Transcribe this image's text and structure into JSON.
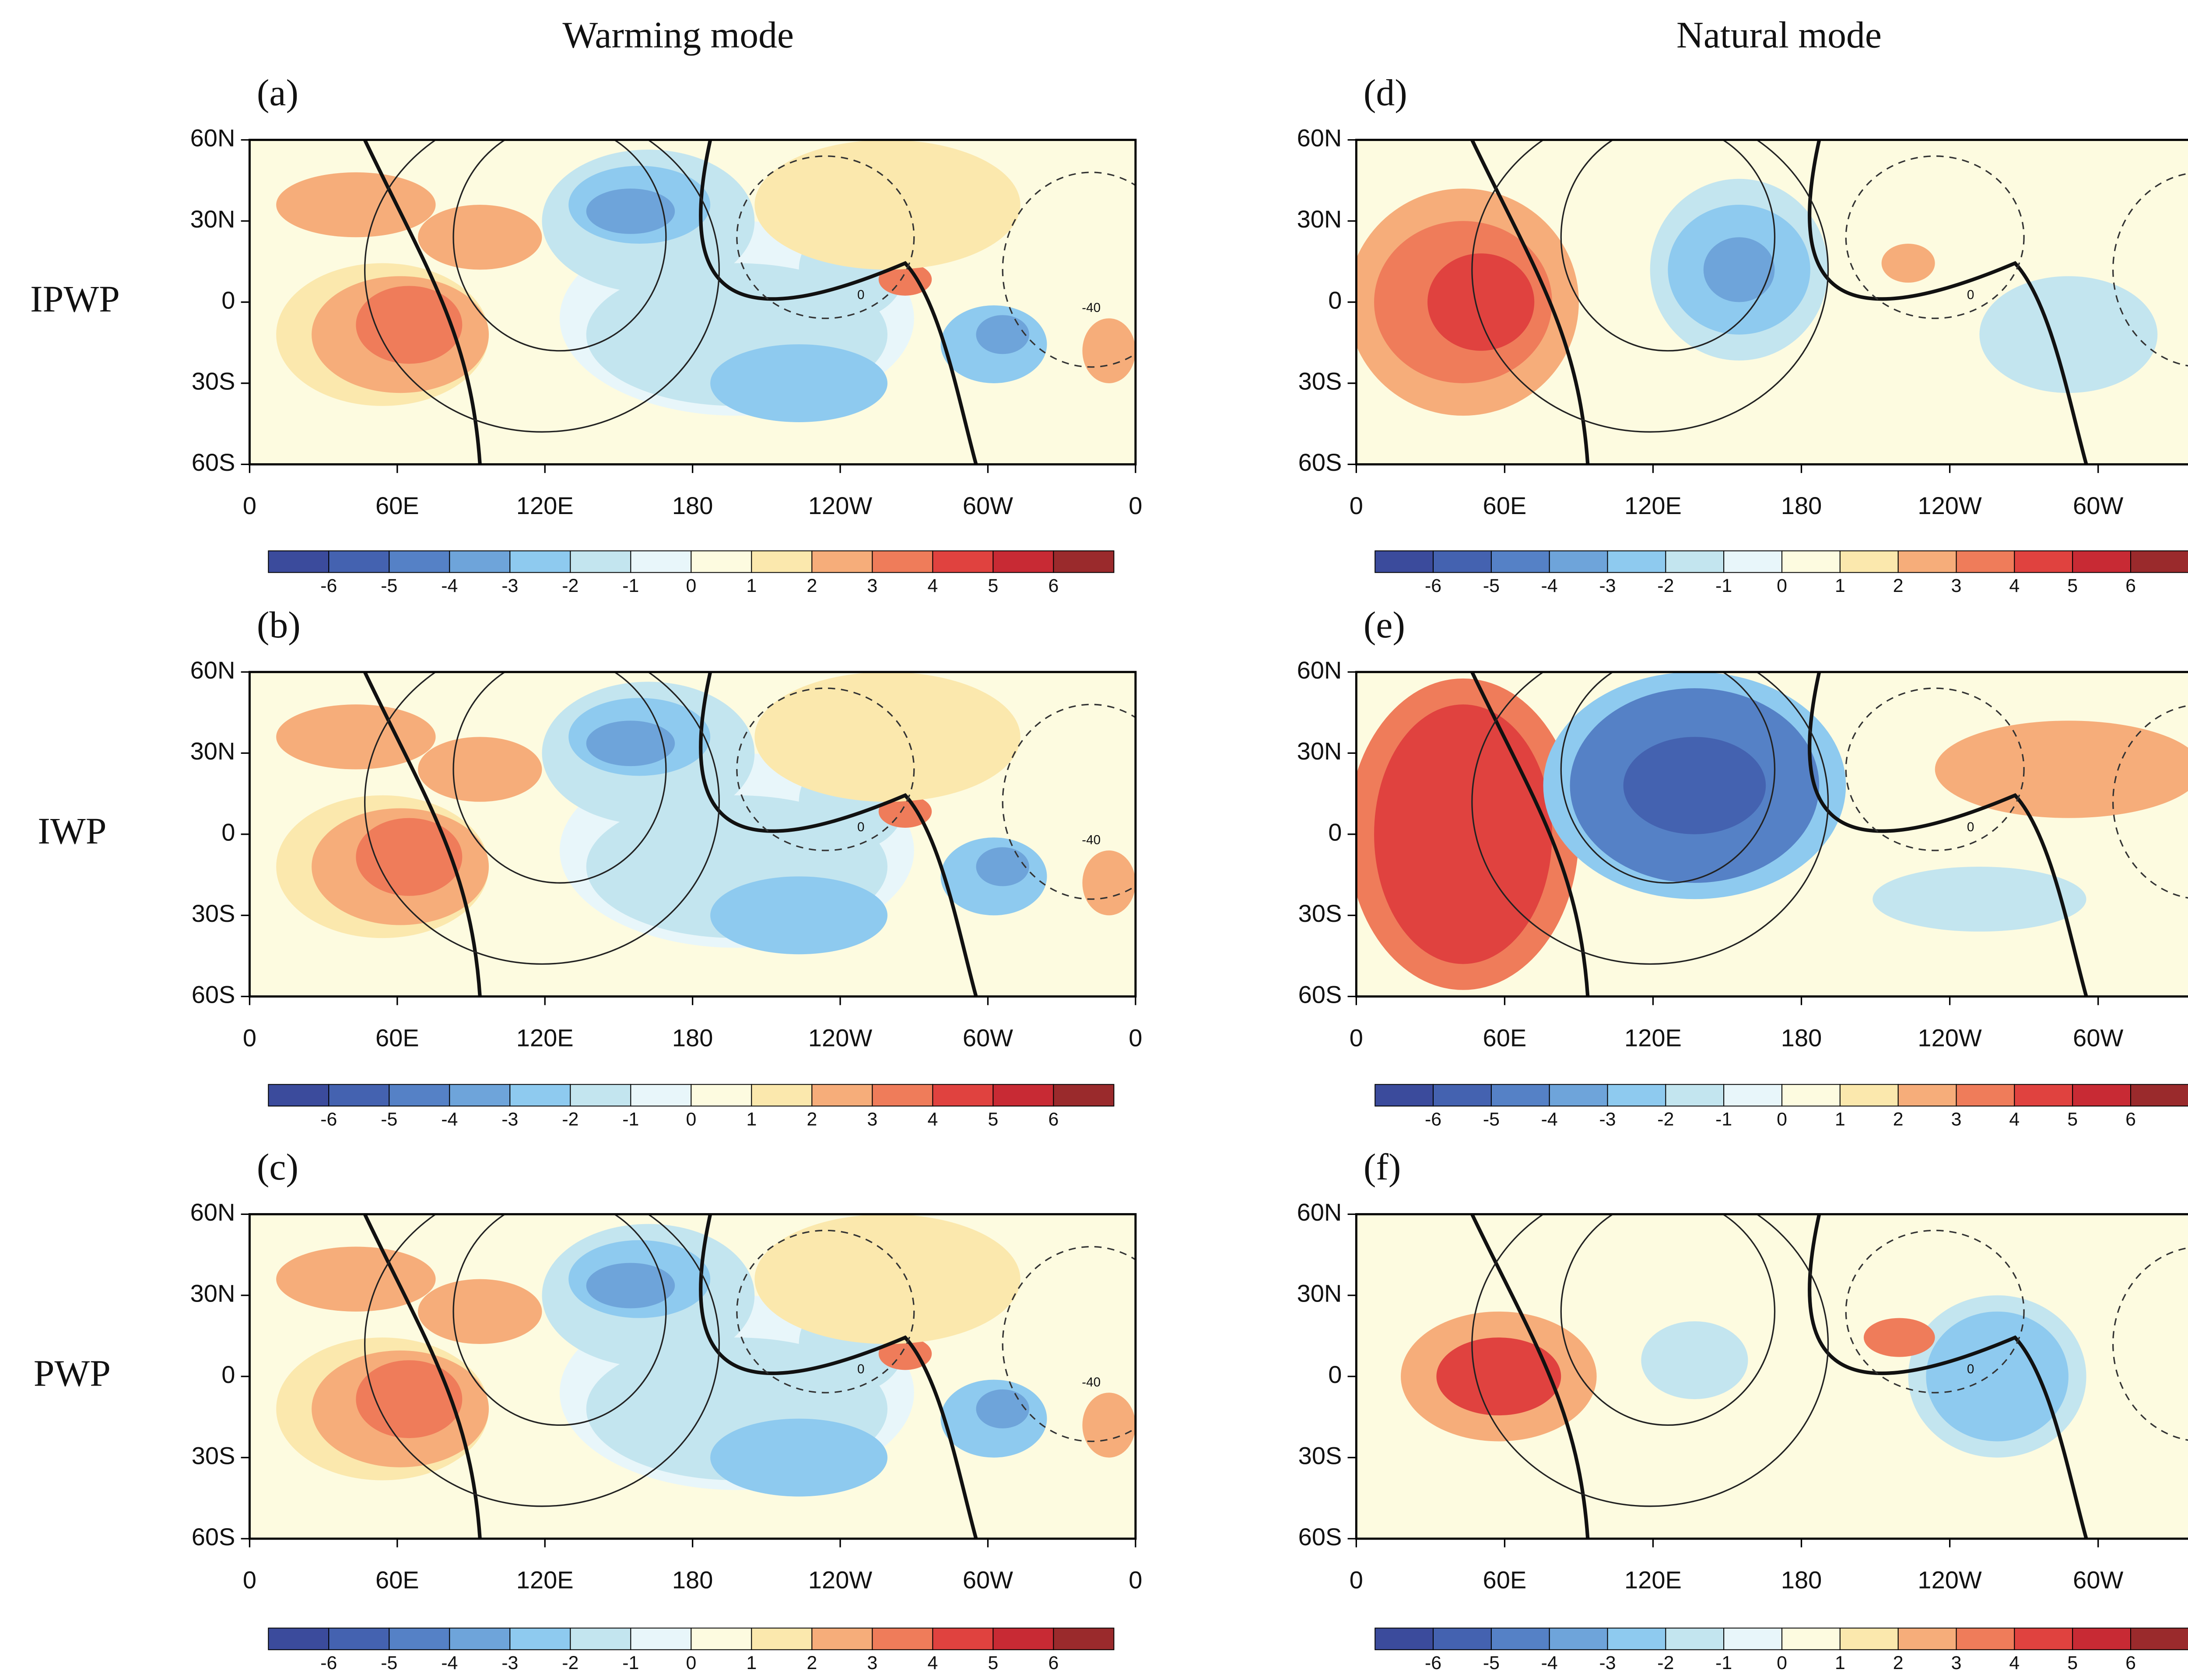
{
  "columns": [
    "Warming mode",
    "Natural mode"
  ],
  "rows": [
    "IPWP",
    "IWP",
    "PWP"
  ],
  "panels": [
    {
      "label": "(a)"
    },
    {
      "label": "(b)"
    },
    {
      "label": "(c)"
    },
    {
      "label": "(d)"
    },
    {
      "label": "(e)"
    },
    {
      "label": "(f)"
    }
  ],
  "lat_labels": [
    "60N",
    "30N",
    "0",
    "30S",
    "60S"
  ],
  "lon_labels": [
    "0",
    "60E",
    "120E",
    "180",
    "120W",
    "60W",
    "0"
  ],
  "contour_labels": [
    "0",
    "-40"
  ],
  "colorbar": {
    "levels": [
      -6,
      -5,
      -4,
      -3,
      -2,
      -1,
      0,
      1,
      2,
      3,
      4,
      5,
      6
    ],
    "colors": [
      "#3b4b9c",
      "#4462b0",
      "#5581c6",
      "#6ea4da",
      "#8ecaef",
      "#c3e5ef",
      "#e8f6fa",
      "#fdfbe0",
      "#fbe8ad",
      "#f6ad7a",
      "#ef7c5a",
      "#e0423f",
      "#c82a34",
      "#9a2a2c"
    ]
  }
}
